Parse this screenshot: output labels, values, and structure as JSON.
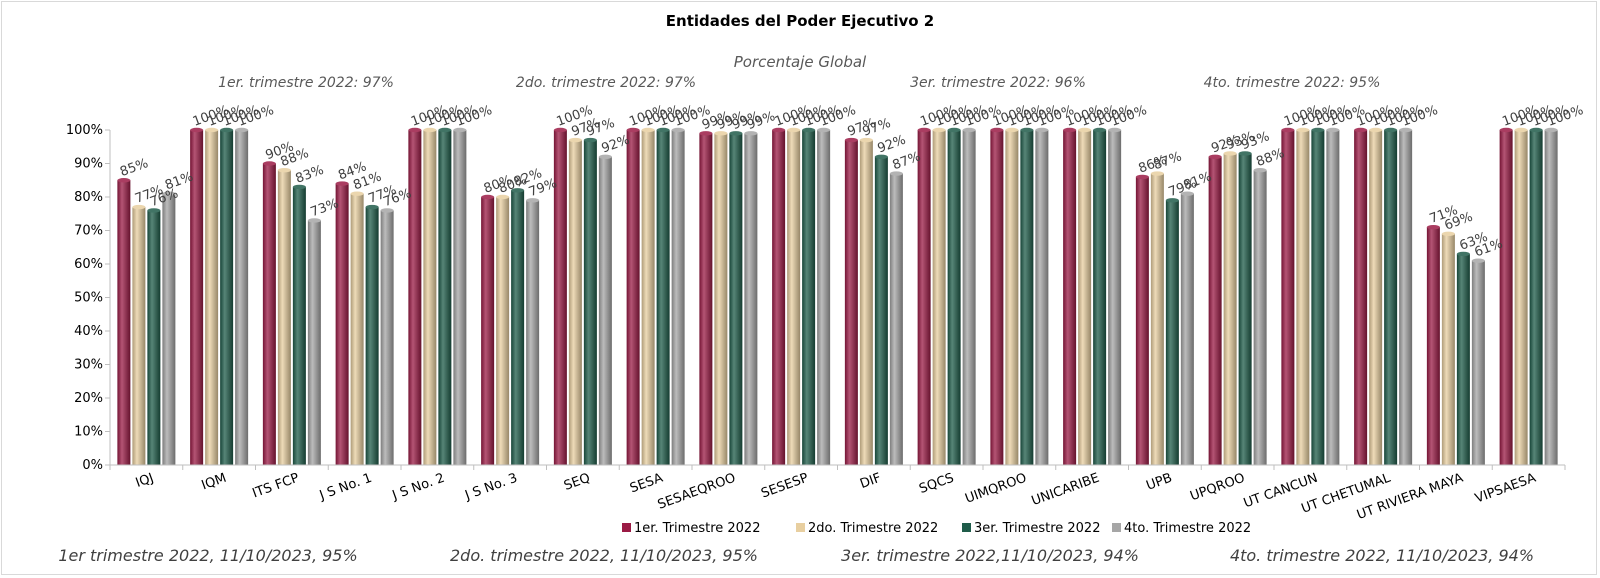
{
  "chart_data": {
    "type": "bar",
    "title": "Entidades del Poder Ejecutivo 2",
    "subtitle": "Porcentaje Global",
    "quarter_summaries": [
      "1er. trimestre 2022: 97%",
      "2do. trimestre 2022: 97%",
      "3er. trimestre 2022: 96%",
      "4to. trimestre 2022: 95%"
    ],
    "footnotes": [
      "1er trimestre  2022,  11/10/2023, 95%",
      "2do. trimestre 2022, 11/10/2023, 95%",
      "3er. trimestre 2022,11/10/2023, 94%",
      "4to. trimestre 2022, 11/10/2023, 94%"
    ],
    "xlabel": "",
    "ylabel": "",
    "ylim": [
      0,
      100
    ],
    "yticks": [
      "0%",
      "10%",
      "20%",
      "30%",
      "40%",
      "50%",
      "60%",
      "70%",
      "80%",
      "90%",
      "100%"
    ],
    "grid": false,
    "legend_position": "bottom",
    "categories": [
      "IQJ",
      "IQM",
      "ITS FCP",
      "J S No. 1",
      "J S No. 2",
      "J S No. 3",
      "SEQ",
      "SESA",
      "SESAEQROO",
      "SESESP",
      "DIF",
      "SQCS",
      "UIMQROO",
      "UNICARIBE",
      "UPB",
      "UPQROO",
      "UT CANCUN",
      "UT CHETUMAL",
      "UT RIVIERA MAYA",
      "VIPSAESA"
    ],
    "series": [
      {
        "name": "1er. Trimestre 2022",
        "color": "#9b1b45",
        "values": [
          85,
          100,
          90,
          84,
          100,
          80,
          100,
          100,
          99,
          100,
          97,
          100,
          100,
          100,
          86,
          92,
          100,
          100,
          71,
          100
        ],
        "labels": [
          "85%",
          "100%",
          "90%",
          "84%",
          "100%",
          "80%",
          "100%",
          "100%",
          "99%",
          "100%",
          "97%",
          "100%",
          "100%",
          "100%",
          "86%",
          "92%",
          "100%",
          "100%",
          "71%",
          "100%"
        ]
      },
      {
        "name": "2do. Trimestre 2022",
        "color": "#e8cfa0",
        "values": [
          77,
          100,
          88,
          81,
          100,
          80,
          97,
          100,
          99,
          100,
          97,
          100,
          100,
          100,
          87,
          93,
          100,
          100,
          69,
          100
        ],
        "labels": [
          "77%",
          "100%",
          "88%",
          "81%",
          "100%",
          "80%",
          "97%",
          "100%",
          "99%",
          "100%",
          "97%",
          "100%",
          "100%",
          "100%",
          "87%",
          "93%",
          "100%",
          "100%",
          "69%",
          "100%"
        ]
      },
      {
        "name": "3er. Trimestre 2022",
        "color": "#1f5c4a",
        "values": [
          76,
          100,
          83,
          77,
          100,
          82,
          97,
          100,
          99,
          100,
          92,
          100,
          100,
          100,
          79,
          93,
          100,
          100,
          63,
          100
        ],
        "labels": [
          "76%",
          "100%",
          "83%",
          "77%",
          "100%",
          "82%",
          "97%",
          "100%",
          "99%",
          "100%",
          "92%",
          "100%",
          "100%",
          "100%",
          "79%",
          "93%",
          "100%",
          "100%",
          "63%",
          "100%"
        ]
      },
      {
        "name": "4to. Trimestre 2022",
        "color": "#a6a6a6",
        "values": [
          81,
          100,
          73,
          76,
          100,
          79,
          92,
          100,
          99,
          100,
          87,
          100,
          100,
          100,
          81,
          88,
          100,
          100,
          61,
          100
        ],
        "labels": [
          "81%",
          "100%",
          "73%",
          "76%",
          "100%",
          "79%",
          "92%",
          "100%",
          "99%",
          "100%",
          "87%",
          "100%",
          "100%",
          "100%",
          "81%",
          "88%",
          "100%",
          "100%",
          "61%",
          "100%"
        ]
      }
    ]
  }
}
